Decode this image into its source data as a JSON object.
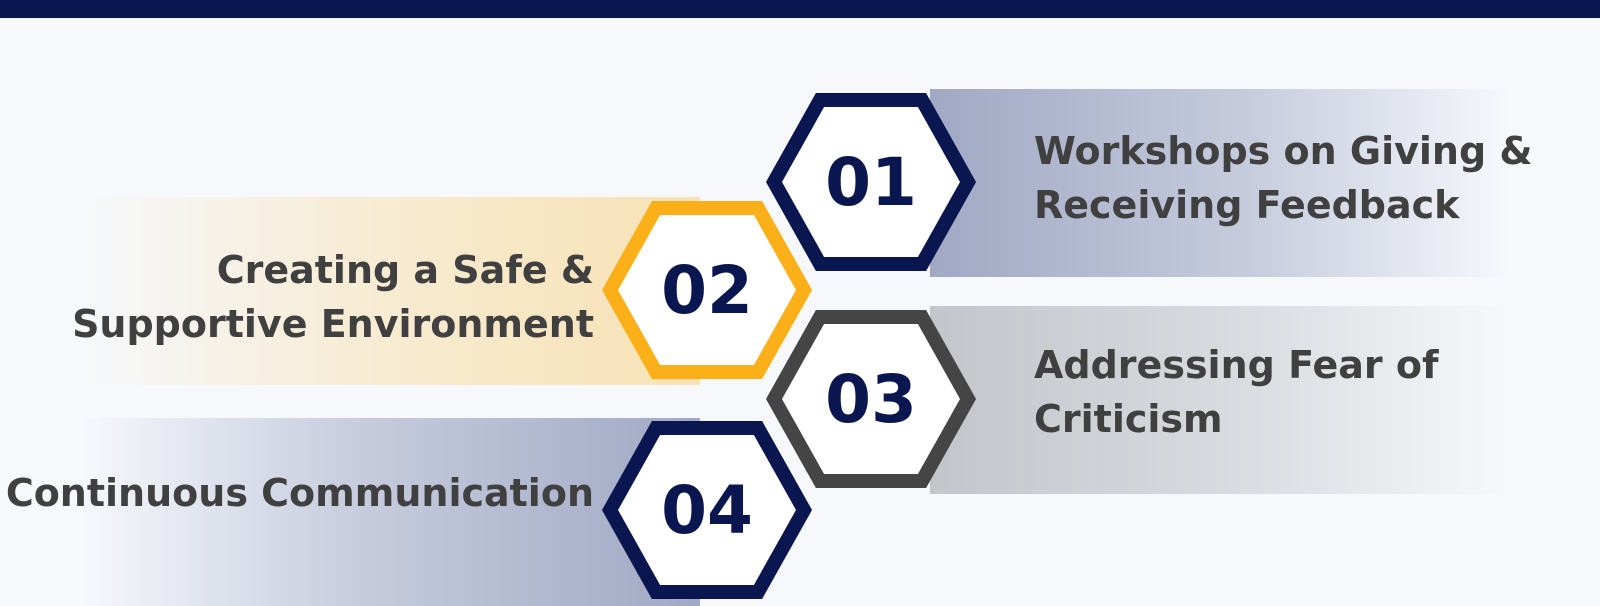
{
  "colors": {
    "navy": "#0a1650",
    "gold": "#fbb01a",
    "gray": "#454545",
    "background": "#f6f8fc",
    "text": "#404040"
  },
  "steps": [
    {
      "number": "01",
      "line1": "Workshops on Giving &",
      "line2": "Receiving Feedback",
      "accent": "navy",
      "side": "right"
    },
    {
      "number": "02",
      "line1": "Creating a Safe &",
      "line2": "Supportive Environment",
      "accent": "gold",
      "side": "left"
    },
    {
      "number": "03",
      "line1": "Addressing Fear of",
      "line2": "Criticism",
      "accent": "gray",
      "side": "right"
    },
    {
      "number": "04",
      "line1": "Continuous Communication",
      "line2": "",
      "accent": "navy",
      "side": "left"
    }
  ]
}
